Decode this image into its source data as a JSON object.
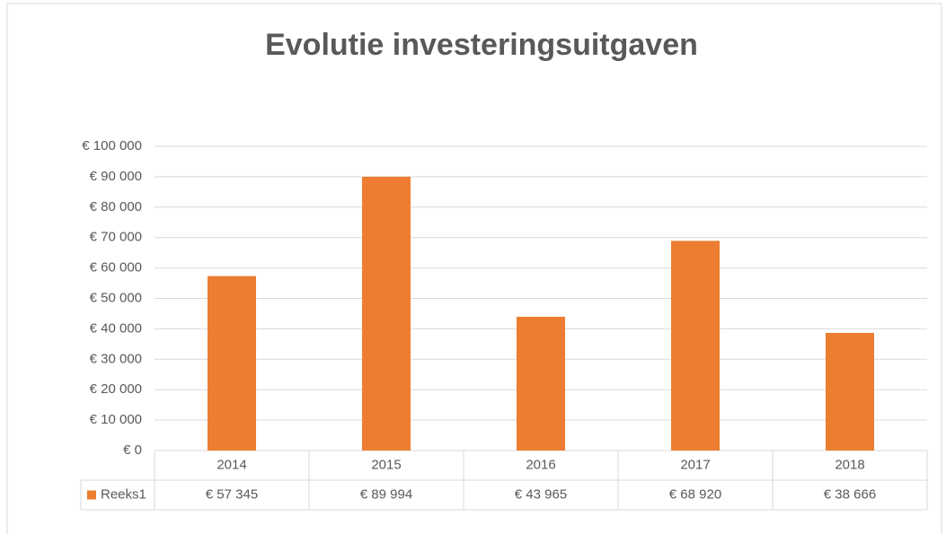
{
  "chart_data": {
    "type": "bar",
    "title": "Evolutie investeringsuitgaven",
    "categories": [
      "2014",
      "2015",
      "2016",
      "2017",
      "2018"
    ],
    "series": [
      {
        "name": "Reeks1",
        "color": "#ed7d31",
        "values": [
          57345,
          89994,
          43965,
          68920,
          38666
        ],
        "value_labels": [
          "€ 57 345",
          "€ 89 994",
          "€ 43 965",
          "€ 68 920",
          "€ 38 666"
        ]
      }
    ],
    "ylim": [
      0,
      100000
    ],
    "yticks": [
      {
        "value": 0,
        "label": "€ 0"
      },
      {
        "value": 10000,
        "label": "€ 10 000"
      },
      {
        "value": 20000,
        "label": "€ 20 000"
      },
      {
        "value": 30000,
        "label": "€ 30 000"
      },
      {
        "value": 40000,
        "label": "€ 40 000"
      },
      {
        "value": 50000,
        "label": "€ 50 000"
      },
      {
        "value": 60000,
        "label": "€ 60 000"
      },
      {
        "value": 70000,
        "label": "€ 70 000"
      },
      {
        "value": 80000,
        "label": "€ 80 000"
      },
      {
        "value": 90000,
        "label": "€ 90 000"
      },
      {
        "value": 100000,
        "label": "€ 100 000"
      }
    ],
    "grid": true,
    "legend": "data-table"
  }
}
